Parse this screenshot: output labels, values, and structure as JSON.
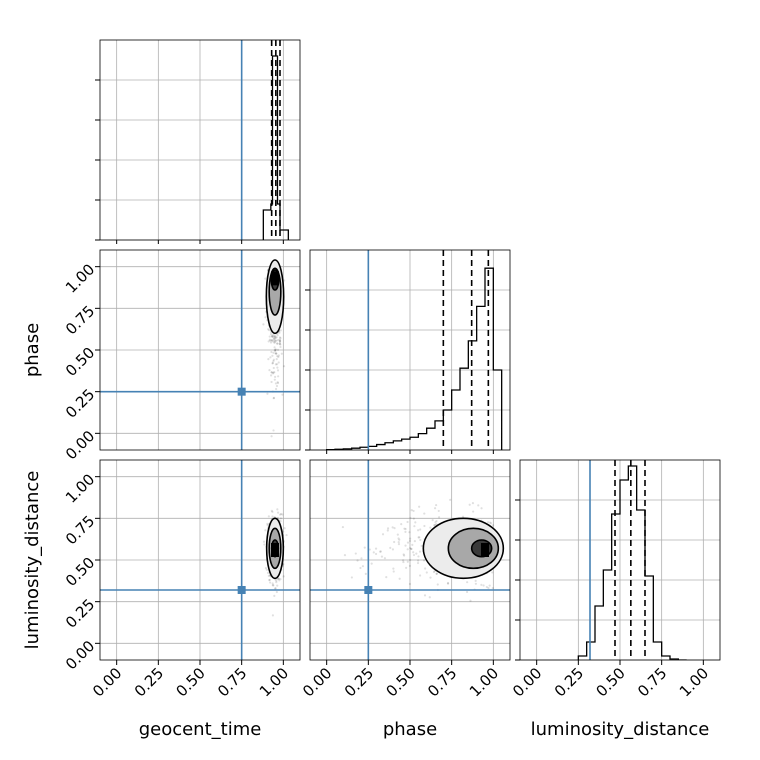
{
  "chart_data": {
    "type": "corner",
    "parameters": [
      "geocent_time",
      "phase",
      "luminosity_distance"
    ],
    "range": [
      -0.1,
      1.1
    ],
    "ticks": [
      "0.00",
      "0.25",
      "0.50",
      "0.75",
      "1.00"
    ],
    "tick_values": [
      0,
      0.25,
      0.5,
      0.75,
      1.0
    ],
    "grid": true,
    "truths": {
      "geocent_time": 0.75,
      "phase": 0.25,
      "luminosity_distance": 0.32
    },
    "truth_color": "#4682b4",
    "hist_color": "#000000",
    "marginals": [
      {
        "parameter": "geocent_time",
        "bin_edges": [
          0.88,
          0.925,
          0.935,
          0.945,
          0.955,
          0.965,
          0.98,
          1.03
        ],
        "counts": [
          0.15,
          0.18,
          0.92,
          0.92,
          0.92,
          0.18,
          0.05
        ],
        "quantiles": [
          0.93,
          0.955,
          0.98
        ],
        "ylim": [
          0,
          1.0
        ]
      },
      {
        "parameter": "phase",
        "bin_edges": [
          0.0,
          0.05,
          0.1,
          0.15,
          0.2,
          0.25,
          0.3,
          0.35,
          0.4,
          0.45,
          0.5,
          0.55,
          0.6,
          0.65,
          0.7,
          0.75,
          0.8,
          0.85,
          0.9,
          0.95,
          1.0,
          1.05
        ],
        "counts": [
          0.002,
          0.004,
          0.006,
          0.01,
          0.015,
          0.02,
          0.03,
          0.04,
          0.05,
          0.06,
          0.07,
          0.09,
          0.12,
          0.16,
          0.22,
          0.33,
          0.45,
          0.6,
          0.79,
          1.0,
          0.44
        ],
        "quantiles": [
          0.7,
          0.87,
          0.97
        ],
        "ylim": [
          0,
          1.1
        ]
      },
      {
        "parameter": "luminosity_distance",
        "bin_edges": [
          0.25,
          0.3,
          0.35,
          0.4,
          0.45,
          0.5,
          0.55,
          0.6,
          0.65,
          0.7,
          0.75,
          0.8,
          0.85,
          0.9
        ],
        "counts": [
          0.02,
          0.09,
          0.27,
          0.45,
          0.73,
          0.9,
          0.97,
          0.75,
          0.42,
          0.09,
          0.02,
          0.005,
          0.0
        ],
        "quantiles": [
          0.47,
          0.565,
          0.65
        ],
        "ylim": [
          0,
          1.0
        ]
      }
    ],
    "joint_2d": [
      {
        "x": "geocent_time",
        "y": "phase",
        "density_peak": [
          0.95,
          0.93
        ],
        "contour_levels": [
          {
            "cx": 0.95,
            "cy": 0.92,
            "rx": 0.022,
            "ry": 0.06
          },
          {
            "cx": 0.95,
            "cy": 0.85,
            "rx": 0.035,
            "ry": 0.14
          },
          {
            "cx": 0.95,
            "cy": 0.82,
            "rx": 0.052,
            "ry": 0.22
          }
        ]
      },
      {
        "x": "geocent_time",
        "y": "luminosity_distance",
        "density_peak": [
          0.95,
          0.56
        ],
        "contour_levels": [
          {
            "cx": 0.95,
            "cy": 0.57,
            "rx": 0.02,
            "ry": 0.05
          },
          {
            "cx": 0.95,
            "cy": 0.57,
            "rx": 0.035,
            "ry": 0.12
          },
          {
            "cx": 0.95,
            "cy": 0.57,
            "rx": 0.05,
            "ry": 0.18
          }
        ]
      },
      {
        "x": "phase",
        "y": "luminosity_distance",
        "density_peak": [
          0.95,
          0.56
        ],
        "contour_levels": [
          {
            "cx": 0.93,
            "cy": 0.57,
            "rx": 0.06,
            "ry": 0.05
          },
          {
            "cx": 0.88,
            "cy": 0.57,
            "rx": 0.15,
            "ry": 0.12
          },
          {
            "cx": 0.82,
            "cy": 0.57,
            "rx": 0.24,
            "ry": 0.18
          }
        ]
      }
    ]
  }
}
